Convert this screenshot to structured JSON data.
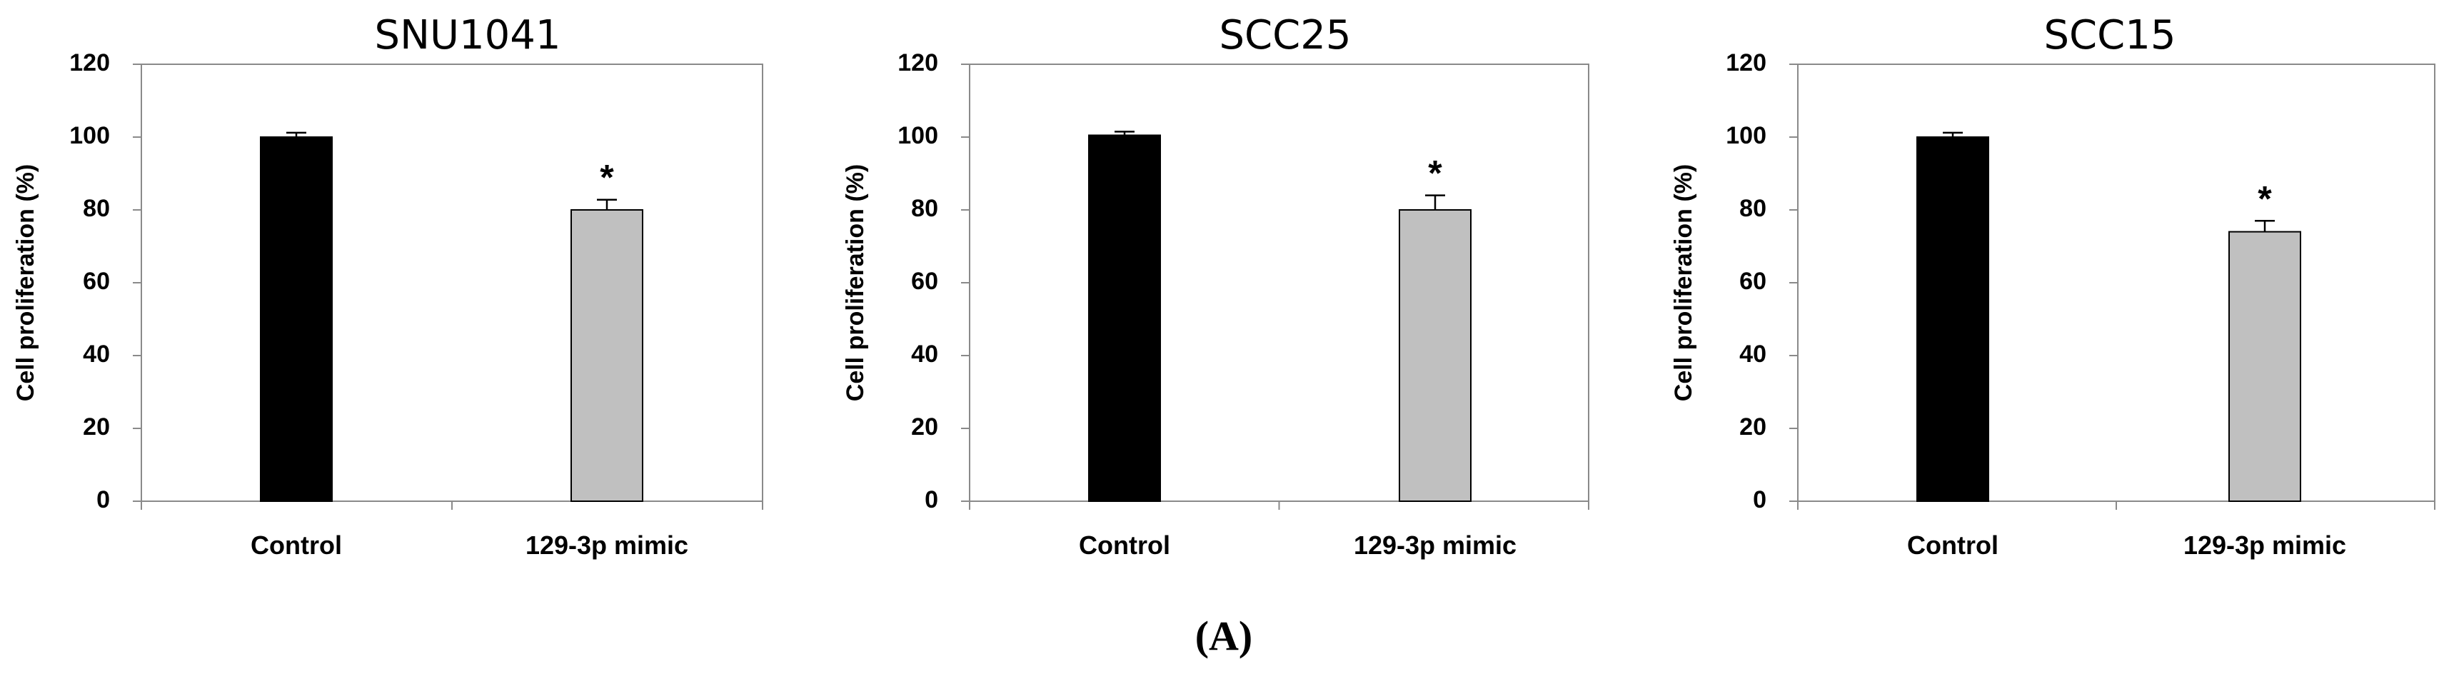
{
  "figure": {
    "panel_label": "(A)"
  },
  "chart_data": [
    {
      "type": "bar",
      "title": "SNU1041",
      "ylabel": "Cell proliferation (%)",
      "xlabel": "",
      "ylim": [
        0,
        120
      ],
      "yticks": [
        0,
        20,
        40,
        60,
        80,
        100,
        120
      ],
      "categories": [
        "Control",
        "129-3p mimic"
      ],
      "values": [
        100,
        80
      ],
      "errors": [
        1.2,
        2.8
      ],
      "colors": [
        "#000000",
        "#c0c0c0"
      ],
      "annotations": [
        "",
        "*"
      ]
    },
    {
      "type": "bar",
      "title": "SCC25",
      "ylabel": "Cell proliferation (%)",
      "xlabel": "",
      "ylim": [
        0,
        120
      ],
      "yticks": [
        0,
        20,
        40,
        60,
        80,
        100,
        120
      ],
      "categories": [
        "Control",
        "129-3p mimic"
      ],
      "values": [
        100.5,
        80
      ],
      "errors": [
        1.0,
        4.0
      ],
      "colors": [
        "#000000",
        "#c0c0c0"
      ],
      "annotations": [
        "",
        "*"
      ]
    },
    {
      "type": "bar",
      "title": "SCC15",
      "ylabel": "Cell proliferation (%)",
      "xlabel": "",
      "ylim": [
        0,
        120
      ],
      "yticks": [
        0,
        20,
        40,
        60,
        80,
        100,
        120
      ],
      "categories": [
        "Control",
        "129-3p mimic"
      ],
      "values": [
        100,
        74
      ],
      "errors": [
        1.2,
        3.0
      ],
      "colors": [
        "#000000",
        "#c0c0c0"
      ],
      "annotations": [
        "",
        "*"
      ]
    }
  ]
}
